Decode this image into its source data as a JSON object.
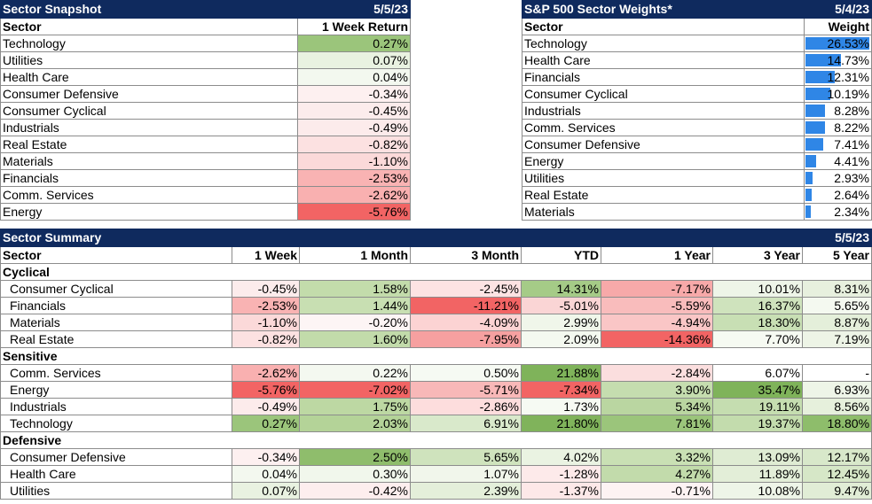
{
  "snapshot": {
    "title": "Sector Snapshot",
    "date": "5/5/23",
    "col_sector": "Sector",
    "col_return": "1 Week Return",
    "rows": [
      {
        "sector": "Technology",
        "value": "0.27%",
        "color": "#9bc57b"
      },
      {
        "sector": "Utilities",
        "value": "0.07%",
        "color": "#e9f2e1"
      },
      {
        "sector": "Health Care",
        "value": "0.04%",
        "color": "#f3f8ef"
      },
      {
        "sector": "Consumer Defensive",
        "value": "-0.34%",
        "color": "#fdf0f0"
      },
      {
        "sector": "Consumer Cyclical",
        "value": "-0.45%",
        "color": "#fcecec"
      },
      {
        "sector": "Industrials",
        "value": "-0.49%",
        "color": "#fcebeb"
      },
      {
        "sector": "Real Estate",
        "value": "-0.82%",
        "color": "#fce1e1"
      },
      {
        "sector": "Materials",
        "value": "-1.10%",
        "color": "#fbd9d9"
      },
      {
        "sector": "Financials",
        "value": "-2.53%",
        "color": "#f9b3b3"
      },
      {
        "sector": "Comm. Services",
        "value": "-2.62%",
        "color": "#f9b0b0"
      },
      {
        "sector": "Energy",
        "value": "-5.76%",
        "color": "#f26464"
      }
    ]
  },
  "weights": {
    "title": "S&P 500 Sector Weights*",
    "date": "5/4/23",
    "col_sector": "Sector",
    "col_weight": "Weight",
    "bar_color": "#2f86e6",
    "rows": [
      {
        "sector": "Technology",
        "value": "26.53%",
        "pct": 26.53
      },
      {
        "sector": "Health Care",
        "value": "14.73%",
        "pct": 14.73
      },
      {
        "sector": "Financials",
        "value": "12.31%",
        "pct": 12.31
      },
      {
        "sector": "Consumer Cyclical",
        "value": "10.19%",
        "pct": 10.19
      },
      {
        "sector": "Industrials",
        "value": "8.28%",
        "pct": 8.28
      },
      {
        "sector": "Comm. Services",
        "value": "8.22%",
        "pct": 8.22
      },
      {
        "sector": "Consumer Defensive",
        "value": "7.41%",
        "pct": 7.41
      },
      {
        "sector": "Energy",
        "value": "4.41%",
        "pct": 4.41
      },
      {
        "sector": "Utilities",
        "value": "2.93%",
        "pct": 2.93
      },
      {
        "sector": "Real Estate",
        "value": "2.64%",
        "pct": 2.64
      },
      {
        "sector": "Materials",
        "value": "2.34%",
        "pct": 2.34
      }
    ]
  },
  "summary": {
    "title": "Sector Summary",
    "date": "5/5/23",
    "headers": [
      "Sector",
      "1 Week",
      "1 Month",
      "3 Month",
      "YTD",
      "1 Year",
      "3 Year",
      "5 Year"
    ],
    "groups": [
      {
        "name": "Cyclical",
        "rows": [
          {
            "sector": "Consumer Cyclical",
            "cells": [
              {
                "v": "-0.45%",
                "c": "#fcecec"
              },
              {
                "v": "1.58%",
                "c": "#c3dcab"
              },
              {
                "v": "-2.45%",
                "c": "#fde3e3"
              },
              {
                "v": "14.31%",
                "c": "#a5cb87"
              },
              {
                "v": "-7.17%",
                "c": "#f7a9a9"
              },
              {
                "v": "10.01%",
                "c": "#eef5e8"
              },
              {
                "v": "8.31%",
                "c": "#e7f0de"
              }
            ]
          },
          {
            "sector": "Financials",
            "cells": [
              {
                "v": "-2.53%",
                "c": "#f9b3b3"
              },
              {
                "v": "1.44%",
                "c": "#c8dfb2"
              },
              {
                "v": "-11.21%",
                "c": "#f26464"
              },
              {
                "v": "-5.01%",
                "c": "#fad5d5"
              },
              {
                "v": "-5.59%",
                "c": "#f9bcbc"
              },
              {
                "v": "16.37%",
                "c": "#cfe3bd"
              },
              {
                "v": "5.65%",
                "c": "#f4f9f0"
              }
            ]
          },
          {
            "sector": "Materials",
            "cells": [
              {
                "v": "-1.10%",
                "c": "#fbd9d9"
              },
              {
                "v": "-0.20%",
                "c": "#fdf5f5"
              },
              {
                "v": "-4.09%",
                "c": "#fcd3d3"
              },
              {
                "v": "2.99%",
                "c": "#f0f6ea"
              },
              {
                "v": "-4.94%",
                "c": "#fac6c6"
              },
              {
                "v": "18.30%",
                "c": "#c8dfb4"
              },
              {
                "v": "8.87%",
                "c": "#e4efda"
              }
            ]
          },
          {
            "sector": "Real Estate",
            "cells": [
              {
                "v": "-0.82%",
                "c": "#fce1e1"
              },
              {
                "v": "1.60%",
                "c": "#c2dbaa"
              },
              {
                "v": "-7.95%",
                "c": "#f6a0a0"
              },
              {
                "v": "2.09%",
                "c": "#f4f9f0"
              },
              {
                "v": "-14.36%",
                "c": "#f26464"
              },
              {
                "v": "7.70%",
                "c": "#f6faf2"
              },
              {
                "v": "7.19%",
                "c": "#edf4e6"
              }
            ]
          }
        ]
      },
      {
        "name": "Sensitive",
        "rows": [
          {
            "sector": "Comm. Services",
            "cells": [
              {
                "v": "-2.62%",
                "c": "#f9b0b0"
              },
              {
                "v": "0.22%",
                "c": "#f4f8f0"
              },
              {
                "v": "0.50%",
                "c": "#f6faf3"
              },
              {
                "v": "21.88%",
                "c": "#7fb35a"
              },
              {
                "v": "-2.84%",
                "c": "#fbdede"
              },
              {
                "v": "6.07%",
                "c": "#ffffff"
              },
              {
                "v": "-",
                "c": "#ffffff"
              }
            ]
          },
          {
            "sector": "Energy",
            "cells": [
              {
                "v": "-5.76%",
                "c": "#f26464"
              },
              {
                "v": "-7.02%",
                "c": "#f26464"
              },
              {
                "v": "-5.71%",
                "c": "#f8b8b8"
              },
              {
                "v": "-7.34%",
                "c": "#f26464"
              },
              {
                "v": "3.90%",
                "c": "#c5ddaf"
              },
              {
                "v": "35.47%",
                "c": "#7fb35a"
              },
              {
                "v": "6.93%",
                "c": "#eef5e8"
              }
            ]
          },
          {
            "sector": "Industrials",
            "cells": [
              {
                "v": "-0.49%",
                "c": "#fcebeb"
              },
              {
                "v": "1.75%",
                "c": "#bdd8a3"
              },
              {
                "v": "-2.86%",
                "c": "#fddddd"
              },
              {
                "v": "1.73%",
                "c": "#f6faf3"
              },
              {
                "v": "5.34%",
                "c": "#bad6a1"
              },
              {
                "v": "19.11%",
                "c": "#c5ddb0"
              },
              {
                "v": "8.56%",
                "c": "#e6f0dc"
              }
            ]
          },
          {
            "sector": "Technology",
            "cells": [
              {
                "v": "0.27%",
                "c": "#9bc57b"
              },
              {
                "v": "2.03%",
                "c": "#b4d398"
              },
              {
                "v": "6.91%",
                "c": "#d9e9cb"
              },
              {
                "v": "21.80%",
                "c": "#80b35b"
              },
              {
                "v": "7.81%",
                "c": "#9bc57b"
              },
              {
                "v": "19.37%",
                "c": "#c3dcad"
              },
              {
                "v": "18.80%",
                "c": "#8ebd6b"
              }
            ]
          }
        ]
      },
      {
        "name": "Defensive",
        "rows": [
          {
            "sector": "Consumer Defensive",
            "cells": [
              {
                "v": "-0.34%",
                "c": "#fdf0f0"
              },
              {
                "v": "2.50%",
                "c": "#8fbd6c"
              },
              {
                "v": "5.65%",
                "c": "#cfe3bd"
              },
              {
                "v": "4.02%",
                "c": "#eaf3e2"
              },
              {
                "v": "3.32%",
                "c": "#c9e0b4"
              },
              {
                "v": "13.09%",
                "c": "#dfecd3"
              },
              {
                "v": "12.17%",
                "c": "#d8e8ca"
              }
            ]
          },
          {
            "sector": "Health Care",
            "cells": [
              {
                "v": "0.04%",
                "c": "#f3f8ef"
              },
              {
                "v": "0.30%",
                "c": "#f1f7ec"
              },
              {
                "v": "1.07%",
                "c": "#f1f6eb"
              },
              {
                "v": "-1.28%",
                "c": "#fdeaea"
              },
              {
                "v": "4.27%",
                "c": "#c2dbab"
              },
              {
                "v": "11.89%",
                "c": "#e3eed8"
              },
              {
                "v": "12.45%",
                "c": "#d6e7c7"
              }
            ]
          },
          {
            "sector": "Utilities",
            "cells": [
              {
                "v": "0.07%",
                "c": "#e9f2e1"
              },
              {
                "v": "-0.42%",
                "c": "#fdeeee"
              },
              {
                "v": "2.39%",
                "c": "#e4efda"
              },
              {
                "v": "-1.37%",
                "c": "#fde8e8"
              },
              {
                "v": "-0.71%",
                "c": "#fdf3f3"
              },
              {
                "v": "10.08%",
                "c": "#eef5e8"
              },
              {
                "v": "9.47%",
                "c": "#e1edd6"
              }
            ]
          }
        ]
      }
    ]
  }
}
